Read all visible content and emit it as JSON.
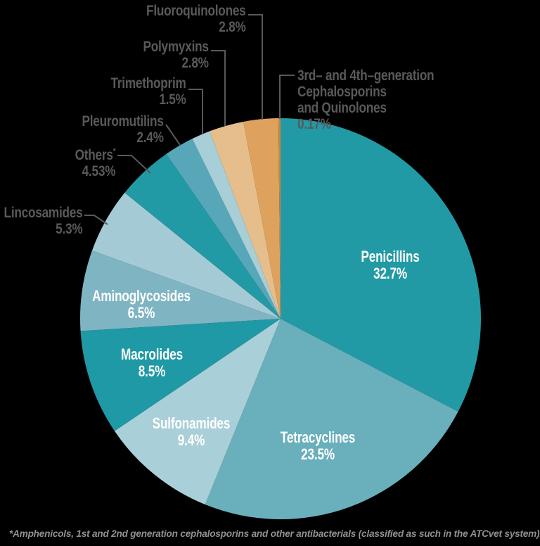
{
  "page": {
    "background": "#000000"
  },
  "chart_data": {
    "type": "pie",
    "title": "",
    "direction": "clockwise",
    "start_angle_deg": 0,
    "unit": "%",
    "slices": [
      {
        "id": "penicillins",
        "label": "Penicillins",
        "value": 32.7,
        "pct_label": "32.7%",
        "color": "#219AA5",
        "label_placement": "inside"
      },
      {
        "id": "tetracyclines",
        "label": "Tetracyclines",
        "value": 23.5,
        "pct_label": "23.5%",
        "color": "#6AAFBC",
        "label_placement": "inside"
      },
      {
        "id": "sulfonamides",
        "label": "Sulfonamides",
        "value": 9.4,
        "pct_label": "9.4%",
        "color": "#A9CFD8",
        "label_placement": "inside"
      },
      {
        "id": "macrolides",
        "label": "Macrolides",
        "value": 8.5,
        "pct_label": "8.5%",
        "color": "#1E99A5",
        "label_placement": "inside"
      },
      {
        "id": "aminoglycosides",
        "label": "Aminoglycosides",
        "value": 6.5,
        "pct_label": "6.5%",
        "color": "#7FB4C3",
        "label_placement": "inside"
      },
      {
        "id": "lincosamides",
        "label": "Lincosamides",
        "value": 5.3,
        "pct_label": "5.3%",
        "color": "#A4CBD5",
        "label_placement": "outside"
      },
      {
        "id": "others",
        "label": "Others*",
        "value": 4.53,
        "pct_label": "4.53%",
        "color": "#219AA5",
        "label_placement": "outside"
      },
      {
        "id": "pleuromutilins",
        "label": "Pleuromutilins",
        "value": 2.4,
        "pct_label": "2.4%",
        "color": "#58A7B8",
        "label_placement": "outside"
      },
      {
        "id": "trimethoprim",
        "label": "Trimethoprim",
        "value": 1.5,
        "pct_label": "1.5%",
        "color": "#A8CED8",
        "label_placement": "outside"
      },
      {
        "id": "polymyxins",
        "label": "Polymyxins",
        "value": 2.8,
        "pct_label": "2.8%",
        "color": "#E5BE8C",
        "label_placement": "outside"
      },
      {
        "id": "fluoroquinolones",
        "label": "Fluoroquinolones",
        "value": 2.8,
        "pct_label": "2.8%",
        "color": "#DFA25E",
        "label_placement": "outside"
      },
      {
        "id": "cephalosporins_quinolones",
        "label": "3rd– and 4th–generation Cephalosporins\nand Quinolones",
        "value": 0.17,
        "pct_label": "0.17%",
        "color": "#C8883C",
        "label_placement": "outside"
      }
    ],
    "footnote": "*Amphenicols, 1st and 2nd generation cephalosporins and other antibacterials (classified as such in the ATCvet system).",
    "style": {
      "outer_label_color": "#58595B",
      "inner_label_color": "#FFFFFF",
      "leader_line_color": "#58595B",
      "footnote_color": "#8E9193"
    }
  }
}
